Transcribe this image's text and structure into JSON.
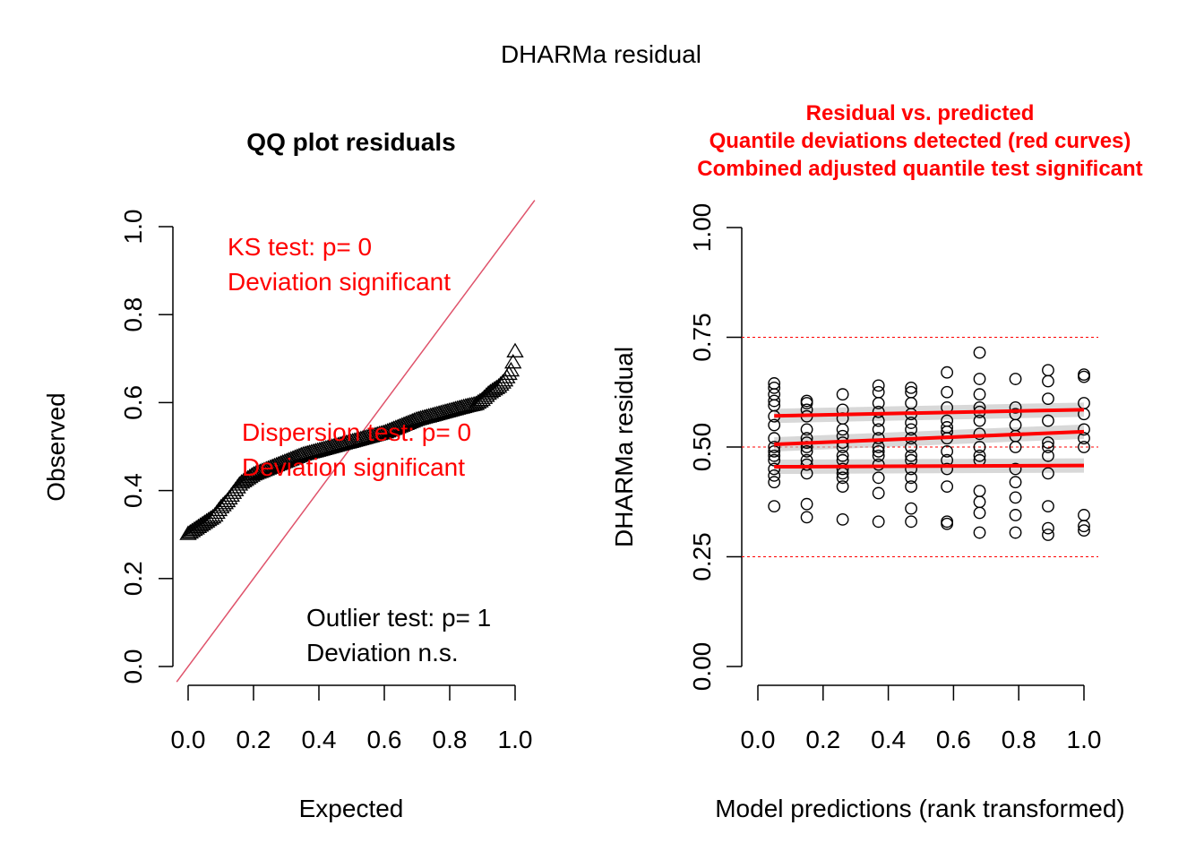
{
  "figure": {
    "title": "DHARMa residual"
  },
  "colors": {
    "red": "#ff0000",
    "black": "#000000",
    "diag": "#df536b",
    "band": "#bebebe"
  },
  "chart_data": [
    {
      "type": "scatter",
      "title": "QQ plot residuals",
      "xlabel": "Expected",
      "ylabel": "Observed",
      "xlim": [
        0,
        1
      ],
      "ylim": [
        0,
        1
      ],
      "xticks": [
        "0.0",
        "0.2",
        "0.4",
        "0.6",
        "0.8",
        "1.0"
      ],
      "yticks": [
        "0.0",
        "0.2",
        "0.4",
        "0.6",
        "0.8",
        "1.0"
      ],
      "reference_line": "y = x",
      "marker": "triangle",
      "quantile_curve": {
        "expected": [
          0.0,
          0.01,
          0.03,
          0.05,
          0.08,
          0.1,
          0.12,
          0.14,
          0.16,
          0.2,
          0.25,
          0.3,
          0.35,
          0.4,
          0.45,
          0.5,
          0.55,
          0.6,
          0.65,
          0.7,
          0.75,
          0.8,
          0.85,
          0.88,
          0.9,
          0.92,
          0.95,
          0.97,
          0.99,
          1.0
        ],
        "observed": [
          0.3,
          0.305,
          0.315,
          0.325,
          0.34,
          0.36,
          0.375,
          0.395,
          0.415,
          0.435,
          0.45,
          0.465,
          0.48,
          0.49,
          0.5,
          0.51,
          0.52,
          0.53,
          0.545,
          0.56,
          0.57,
          0.58,
          0.59,
          0.595,
          0.605,
          0.62,
          0.635,
          0.65,
          0.675,
          0.715
        ]
      },
      "annotations": [
        {
          "lines": [
            "KS test: p= 0",
            "Deviation  significant"
          ],
          "color": "red"
        },
        {
          "lines": [
            "Dispersion test: p= 0",
            "Deviation  significant"
          ],
          "color": "red"
        },
        {
          "lines": [
            "Outlier test: p= 1",
            "Deviation  n.s."
          ],
          "color": "black"
        }
      ]
    },
    {
      "type": "scatter",
      "title_lines": [
        "Residual vs. predicted",
        "Quantile deviations detected (red curves)",
        "Combined adjusted quantile test significant"
      ],
      "xlabel": "Model predictions (rank transformed)",
      "ylabel": "DHARMa residual",
      "xlim": [
        0,
        1
      ],
      "ylim": [
        0,
        1
      ],
      "xticks": [
        "0.0",
        "0.2",
        "0.4",
        "0.6",
        "0.8",
        "1.0"
      ],
      "yticks": [
        "0.00",
        "0.25",
        "0.50",
        "0.75",
        "1.00"
      ],
      "reference_lines": [
        0.25,
        0.5,
        0.75
      ],
      "marker": "circle",
      "groups": [
        {
          "x": 0.05,
          "y": [
            0.365,
            0.42,
            0.435,
            0.45,
            0.47,
            0.48,
            0.49,
            0.5,
            0.52,
            0.55,
            0.57,
            0.595,
            0.605,
            0.62,
            0.635,
            0.645
          ]
        },
        {
          "x": 0.15,
          "y": [
            0.34,
            0.37,
            0.44,
            0.46,
            0.47,
            0.49,
            0.5,
            0.51,
            0.52,
            0.54,
            0.57,
            0.585,
            0.6,
            0.605
          ]
        },
        {
          "x": 0.26,
          "y": [
            0.335,
            0.41,
            0.43,
            0.44,
            0.45,
            0.47,
            0.48,
            0.5,
            0.51,
            0.525,
            0.54,
            0.565,
            0.585,
            0.62
          ]
        },
        {
          "x": 0.37,
          "y": [
            0.33,
            0.395,
            0.43,
            0.46,
            0.48,
            0.49,
            0.5,
            0.52,
            0.54,
            0.56,
            0.58,
            0.6,
            0.625,
            0.64
          ]
        },
        {
          "x": 0.47,
          "y": [
            0.33,
            0.36,
            0.41,
            0.43,
            0.45,
            0.47,
            0.48,
            0.5,
            0.52,
            0.54,
            0.555,
            0.575,
            0.6,
            0.625,
            0.635
          ]
        },
        {
          "x": 0.58,
          "y": [
            0.325,
            0.33,
            0.41,
            0.45,
            0.47,
            0.49,
            0.52,
            0.535,
            0.545,
            0.56,
            0.59,
            0.625,
            0.67
          ]
        },
        {
          "x": 0.68,
          "y": [
            0.305,
            0.35,
            0.375,
            0.4,
            0.47,
            0.48,
            0.5,
            0.53,
            0.56,
            0.58,
            0.59,
            0.62,
            0.655,
            0.715
          ]
        },
        {
          "x": 0.79,
          "y": [
            0.305,
            0.345,
            0.385,
            0.42,
            0.45,
            0.5,
            0.525,
            0.55,
            0.575,
            0.59,
            0.655
          ]
        },
        {
          "x": 0.89,
          "y": [
            0.3,
            0.315,
            0.365,
            0.44,
            0.48,
            0.5,
            0.51,
            0.56,
            0.61,
            0.65,
            0.675
          ]
        },
        {
          "x": 1.0,
          "y": [
            0.31,
            0.32,
            0.345,
            0.5,
            0.52,
            0.54,
            0.575,
            0.6,
            0.66,
            0.665
          ]
        }
      ],
      "quantile_lines": [
        {
          "quantile": 0.25,
          "x": [
            0.05,
            1.0
          ],
          "y": [
            0.455,
            0.458
          ]
        },
        {
          "quantile": 0.5,
          "x": [
            0.05,
            1.0
          ],
          "y": [
            0.506,
            0.535
          ]
        },
        {
          "quantile": 0.75,
          "x": [
            0.05,
            1.0
          ],
          "y": [
            0.571,
            0.585
          ]
        }
      ]
    }
  ]
}
